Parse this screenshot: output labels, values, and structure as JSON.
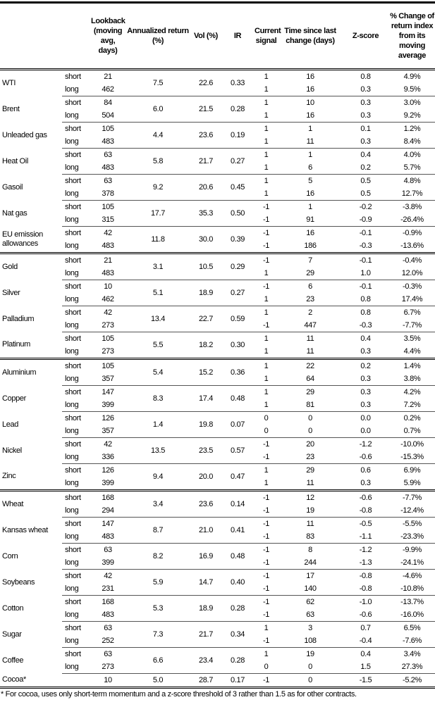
{
  "headers": [
    "",
    "",
    "Lookback (moving avg, days)",
    "Annualized return (%)",
    "Vol (%)",
    "IR",
    "Current signal",
    "Time since last change (days)",
    "Z-score",
    "% Change of return index from its moving average"
  ],
  "groups": [
    {
      "assets": [
        {
          "name": "WTI",
          "ann": "7.5",
          "vol": "22.6",
          "ir": "0.33",
          "rows": [
            {
              "term": "short",
              "lookback": "21",
              "signal": "1",
              "time": "16",
              "z": "0.8",
              "pct": "4.9%"
            },
            {
              "term": "long",
              "lookback": "462",
              "signal": "1",
              "time": "16",
              "z": "0.3",
              "pct": "9.5%"
            }
          ]
        },
        {
          "name": "Brent",
          "ann": "6.0",
          "vol": "21.5",
          "ir": "0.28",
          "rows": [
            {
              "term": "short",
              "lookback": "84",
              "signal": "1",
              "time": "10",
              "z": "0.3",
              "pct": "3.0%"
            },
            {
              "term": "long",
              "lookback": "504",
              "signal": "1",
              "time": "16",
              "z": "0.3",
              "pct": "9.2%"
            }
          ]
        },
        {
          "name": "Unleaded gas",
          "ann": "4.4",
          "vol": "23.6",
          "ir": "0.19",
          "rows": [
            {
              "term": "short",
              "lookback": "105",
              "signal": "1",
              "time": "1",
              "z": "0.1",
              "pct": "1.2%"
            },
            {
              "term": "long",
              "lookback": "483",
              "signal": "1",
              "time": "11",
              "z": "0.3",
              "pct": "8.4%"
            }
          ]
        },
        {
          "name": "Heat Oil",
          "ann": "5.8",
          "vol": "21.7",
          "ir": "0.27",
          "rows": [
            {
              "term": "short",
              "lookback": "63",
              "signal": "1",
              "time": "1",
              "z": "0.4",
              "pct": "4.0%"
            },
            {
              "term": "long",
              "lookback": "483",
              "signal": "1",
              "time": "6",
              "z": "0.2",
              "pct": "5.7%"
            }
          ]
        },
        {
          "name": "Gasoil",
          "ann": "9.2",
          "vol": "20.6",
          "ir": "0.45",
          "rows": [
            {
              "term": "short",
              "lookback": "63",
              "signal": "1",
              "time": "5",
              "z": "0.5",
              "pct": "4.8%"
            },
            {
              "term": "long",
              "lookback": "378",
              "signal": "1",
              "time": "16",
              "z": "0.5",
              "pct": "12.7%"
            }
          ]
        },
        {
          "name": "Nat gas",
          "ann": "17.7",
          "vol": "35.3",
          "ir": "0.50",
          "rows": [
            {
              "term": "short",
              "lookback": "105",
              "signal": "-1",
              "time": "1",
              "z": "-0.2",
              "pct": "-3.8%"
            },
            {
              "term": "long",
              "lookback": "315",
              "signal": "-1",
              "time": "91",
              "z": "-0.9",
              "pct": "-26.4%"
            }
          ]
        },
        {
          "name": "EU emission allowances",
          "ann": "11.8",
          "vol": "30.0",
          "ir": "0.39",
          "rows": [
            {
              "term": "short",
              "lookback": "42",
              "signal": "-1",
              "time": "16",
              "z": "-0.1",
              "pct": "-0.9%"
            },
            {
              "term": "long",
              "lookback": "483",
              "signal": "-1",
              "time": "186",
              "z": "-0.3",
              "pct": "-13.6%"
            }
          ]
        }
      ]
    },
    {
      "assets": [
        {
          "name": "Gold",
          "ann": "3.1",
          "vol": "10.5",
          "ir": "0.29",
          "rows": [
            {
              "term": "short",
              "lookback": "21",
              "signal": "-1",
              "time": "7",
              "z": "-0.1",
              "pct": "-0.4%"
            },
            {
              "term": "long",
              "lookback": "483",
              "signal": "1",
              "time": "29",
              "z": "1.0",
              "pct": "12.0%"
            }
          ]
        },
        {
          "name": "Silver",
          "ann": "5.1",
          "vol": "18.9",
          "ir": "0.27",
          "rows": [
            {
              "term": "short",
              "lookback": "10",
              "signal": "-1",
              "time": "6",
              "z": "-0.1",
              "pct": "-0.3%"
            },
            {
              "term": "long",
              "lookback": "462",
              "signal": "1",
              "time": "23",
              "z": "0.8",
              "pct": "17.4%"
            }
          ]
        },
        {
          "name": "Palladium",
          "ann": "13.4",
          "vol": "22.7",
          "ir": "0.59",
          "rows": [
            {
              "term": "short",
              "lookback": "42",
              "signal": "1",
              "time": "2",
              "z": "0.8",
              "pct": "6.7%"
            },
            {
              "term": "long",
              "lookback": "273",
              "signal": "-1",
              "time": "447",
              "z": "-0.3",
              "pct": "-7.7%"
            }
          ]
        },
        {
          "name": "Platinum",
          "ann": "5.5",
          "vol": "18.2",
          "ir": "0.30",
          "rows": [
            {
              "term": "short",
              "lookback": "105",
              "signal": "1",
              "time": "11",
              "z": "0.4",
              "pct": "3.5%"
            },
            {
              "term": "long",
              "lookback": "273",
              "signal": "1",
              "time": "11",
              "z": "0.3",
              "pct": "4.4%"
            }
          ]
        }
      ]
    },
    {
      "assets": [
        {
          "name": "Aluminium",
          "ann": "5.4",
          "vol": "15.2",
          "ir": "0.36",
          "rows": [
            {
              "term": "short",
              "lookback": "105",
              "signal": "1",
              "time": "22",
              "z": "0.2",
              "pct": "1.4%"
            },
            {
              "term": "long",
              "lookback": "357",
              "signal": "1",
              "time": "64",
              "z": "0.3",
              "pct": "3.8%"
            }
          ]
        },
        {
          "name": "Copper",
          "ann": "8.3",
          "vol": "17.4",
          "ir": "0.48",
          "rows": [
            {
              "term": "short",
              "lookback": "147",
              "signal": "1",
              "time": "29",
              "z": "0.3",
              "pct": "4.2%"
            },
            {
              "term": "long",
              "lookback": "399",
              "signal": "1",
              "time": "81",
              "z": "0.3",
              "pct": "7.2%"
            }
          ]
        },
        {
          "name": "Lead",
          "ann": "1.4",
          "vol": "19.8",
          "ir": "0.07",
          "rows": [
            {
              "term": "short",
              "lookback": "126",
              "signal": "0",
              "time": "0",
              "z": "0.0",
              "pct": "0.2%"
            },
            {
              "term": "long",
              "lookback": "357",
              "signal": "0",
              "time": "0",
              "z": "0.0",
              "pct": "0.7%"
            }
          ]
        },
        {
          "name": "Nickel",
          "ann": "13.5",
          "vol": "23.5",
          "ir": "0.57",
          "rows": [
            {
              "term": "short",
              "lookback": "42",
              "signal": "-1",
              "time": "20",
              "z": "-1.2",
              "pct": "-10.0%"
            },
            {
              "term": "long",
              "lookback": "336",
              "signal": "-1",
              "time": "23",
              "z": "-0.6",
              "pct": "-15.3%"
            }
          ]
        },
        {
          "name": "Zinc",
          "ann": "9.4",
          "vol": "20.0",
          "ir": "0.47",
          "rows": [
            {
              "term": "short",
              "lookback": "126",
              "signal": "1",
              "time": "29",
              "z": "0.6",
              "pct": "6.9%"
            },
            {
              "term": "long",
              "lookback": "399",
              "signal": "1",
              "time": "11",
              "z": "0.3",
              "pct": "5.9%"
            }
          ]
        }
      ]
    },
    {
      "assets": [
        {
          "name": "Wheat",
          "ann": "3.4",
          "vol": "23.6",
          "ir": "0.14",
          "rows": [
            {
              "term": "short",
              "lookback": "168",
              "signal": "-1",
              "time": "12",
              "z": "-0.6",
              "pct": "-7.7%"
            },
            {
              "term": "long",
              "lookback": "294",
              "signal": "-1",
              "time": "19",
              "z": "-0.8",
              "pct": "-12.4%"
            }
          ]
        },
        {
          "name": "Kansas wheat",
          "ann": "8.7",
          "vol": "21.0",
          "ir": "0.41",
          "rows": [
            {
              "term": "short",
              "lookback": "147",
              "signal": "-1",
              "time": "11",
              "z": "-0.5",
              "pct": "-5.5%"
            },
            {
              "term": "long",
              "lookback": "483",
              "signal": "-1",
              "time": "83",
              "z": "-1.1",
              "pct": "-23.3%"
            }
          ]
        },
        {
          "name": "Corn",
          "ann": "8.2",
          "vol": "16.9",
          "ir": "0.48",
          "rows": [
            {
              "term": "short",
              "lookback": "63",
              "signal": "-1",
              "time": "8",
              "z": "-1.2",
              "pct": "-9.9%"
            },
            {
              "term": "long",
              "lookback": "399",
              "signal": "-1",
              "time": "244",
              "z": "-1.3",
              "pct": "-24.1%"
            }
          ]
        },
        {
          "name": "Soybeans",
          "ann": "5.9",
          "vol": "14.7",
          "ir": "0.40",
          "rows": [
            {
              "term": "short",
              "lookback": "42",
              "signal": "-1",
              "time": "17",
              "z": "-0.8",
              "pct": "-4.6%"
            },
            {
              "term": "long",
              "lookback": "231",
              "signal": "-1",
              "time": "140",
              "z": "-0.8",
              "pct": "-10.8%"
            }
          ]
        },
        {
          "name": "Cotton",
          "ann": "5.3",
          "vol": "18.9",
          "ir": "0.28",
          "rows": [
            {
              "term": "short",
              "lookback": "168",
              "signal": "-1",
              "time": "62",
              "z": "-1.0",
              "pct": "-13.7%"
            },
            {
              "term": "long",
              "lookback": "483",
              "signal": "-1",
              "time": "63",
              "z": "-0.6",
              "pct": "-16.0%"
            }
          ]
        },
        {
          "name": "Sugar",
          "ann": "7.3",
          "vol": "21.7",
          "ir": "0.34",
          "rows": [
            {
              "term": "short",
              "lookback": "63",
              "signal": "1",
              "time": "3",
              "z": "0.7",
              "pct": "6.5%"
            },
            {
              "term": "long",
              "lookback": "252",
              "signal": "-1",
              "time": "108",
              "z": "-0.4",
              "pct": "-7.6%"
            }
          ]
        },
        {
          "name": "Coffee",
          "ann": "6.6",
          "vol": "23.4",
          "ir": "0.28",
          "rows": [
            {
              "term": "short",
              "lookback": "63",
              "signal": "1",
              "time": "19",
              "z": "0.4",
              "pct": "3.4%"
            },
            {
              "term": "long",
              "lookback": "273",
              "signal": "0",
              "time": "0",
              "z": "1.5",
              "pct": "27.3%"
            }
          ]
        },
        {
          "name": "Cocoa*",
          "ann": "5.0",
          "vol": "28.7",
          "ir": "0.17",
          "rows": [
            {
              "term": "",
              "lookback": "10",
              "signal": "-1",
              "time": "0",
              "z": "-1.5",
              "pct": "-5.2%"
            }
          ]
        }
      ]
    }
  ],
  "footnote": "* For cocoa, uses only short-term momentum and a z-score threshold of 3 rather than 1.5 as for other contracts."
}
